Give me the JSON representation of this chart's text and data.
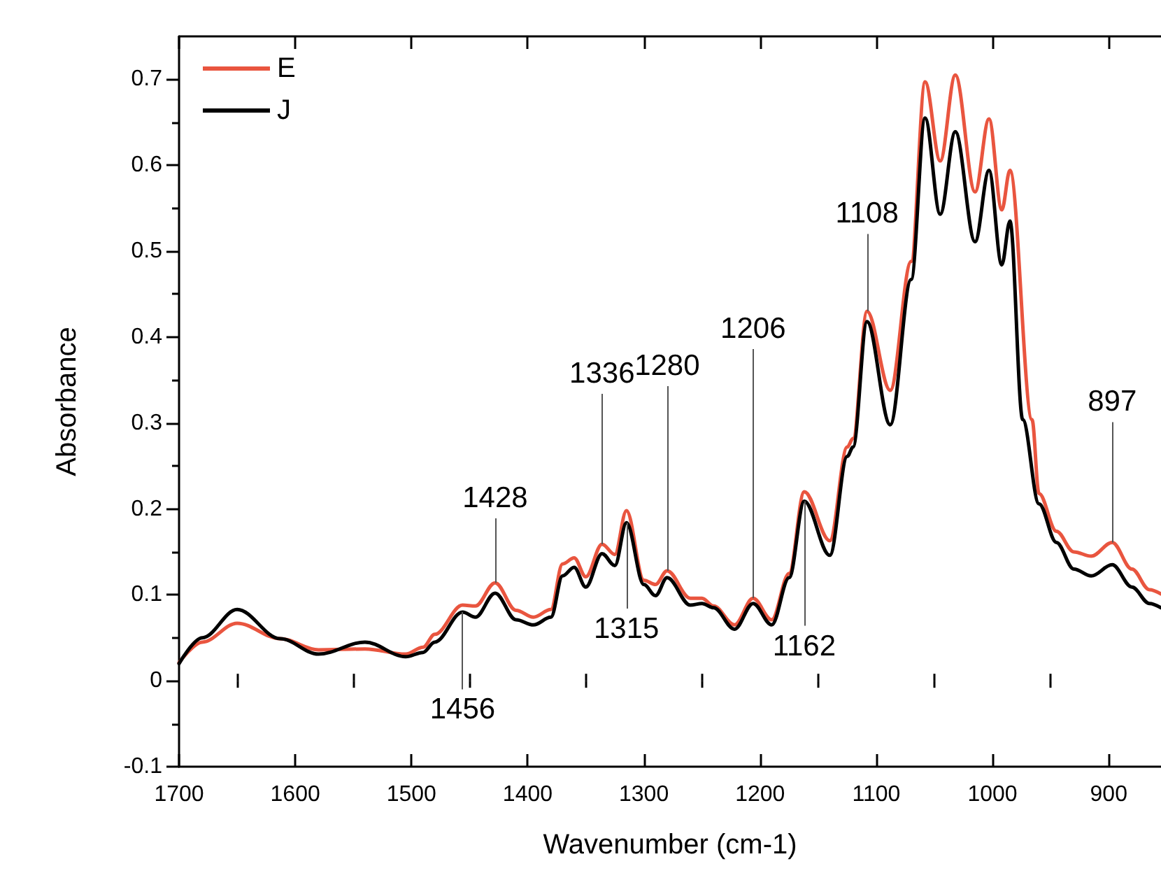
{
  "chart_data": {
    "type": "line",
    "xlabel": "Wavenumber (cm-1)",
    "ylabel": "Absorbance",
    "xlim": [
      1700,
      855
    ],
    "ylim": [
      -0.1,
      0.75
    ],
    "xticks": [
      1700,
      1600,
      1500,
      1400,
      1300,
      1200,
      1100,
      1000,
      900
    ],
    "yticks": [
      -0.1,
      0.0,
      0.1,
      0.2,
      0.3,
      0.4,
      0.5,
      0.6,
      0.7
    ],
    "legend": "top left",
    "grid": false,
    "marker": "none",
    "line_style": "solid",
    "series": [
      {
        "name": "E",
        "color": "#e9553f",
        "x": [
          1700,
          1680,
          1650,
          1613,
          1580,
          1540,
          1505,
          1490,
          1480,
          1456,
          1445,
          1428,
          1410,
          1395,
          1380,
          1370,
          1360,
          1350,
          1336,
          1325,
          1315,
          1300,
          1290,
          1280,
          1260,
          1250,
          1240,
          1222,
          1206,
          1190,
          1175,
          1162,
          1140,
          1125,
          1120,
          1108,
          1088,
          1070,
          1058,
          1045,
          1032,
          1015,
          1003,
          992,
          985,
          966,
          960,
          945,
          930,
          915,
          897,
          880,
          865,
          855
        ],
        "values": [
          0.021,
          0.045,
          0.067,
          0.049,
          0.036,
          0.037,
          0.031,
          0.039,
          0.054,
          0.088,
          0.087,
          0.114,
          0.082,
          0.074,
          0.083,
          0.136,
          0.143,
          0.121,
          0.159,
          0.147,
          0.198,
          0.117,
          0.112,
          0.128,
          0.096,
          0.096,
          0.087,
          0.065,
          0.096,
          0.071,
          0.125,
          0.22,
          0.163,
          0.272,
          0.282,
          0.43,
          0.338,
          0.488,
          0.697,
          0.605,
          0.705,
          0.569,
          0.654,
          0.548,
          0.594,
          0.304,
          0.218,
          0.174,
          0.15,
          0.145,
          0.161,
          0.13,
          0.106,
          0.101
        ]
      },
      {
        "name": "J",
        "color": "#000000",
        "x": [
          1700,
          1680,
          1650,
          1613,
          1580,
          1540,
          1505,
          1490,
          1480,
          1456,
          1445,
          1428,
          1410,
          1395,
          1380,
          1370,
          1360,
          1350,
          1336,
          1325,
          1315,
          1300,
          1290,
          1280,
          1260,
          1250,
          1240,
          1222,
          1206,
          1190,
          1175,
          1162,
          1140,
          1125,
          1120,
          1108,
          1088,
          1070,
          1058,
          1045,
          1032,
          1015,
          1003,
          992,
          985,
          974,
          960,
          945,
          930,
          915,
          897,
          880,
          865,
          855
        ],
        "values": [
          0.02,
          0.05,
          0.083,
          0.049,
          0.031,
          0.045,
          0.028,
          0.033,
          0.045,
          0.08,
          0.074,
          0.102,
          0.071,
          0.065,
          0.074,
          0.122,
          0.132,
          0.109,
          0.148,
          0.134,
          0.184,
          0.112,
          0.099,
          0.12,
          0.088,
          0.09,
          0.085,
          0.06,
          0.09,
          0.065,
          0.12,
          0.209,
          0.146,
          0.261,
          0.272,
          0.418,
          0.298,
          0.467,
          0.655,
          0.543,
          0.639,
          0.511,
          0.594,
          0.484,
          0.535,
          0.304,
          0.206,
          0.161,
          0.13,
          0.122,
          0.135,
          0.109,
          0.09,
          0.085
        ]
      }
    ],
    "annotations": [
      {
        "text": "1456",
        "x": 1456,
        "y": 0.08
      },
      {
        "text": "1428",
        "x": 1428,
        "y": 0.114
      },
      {
        "text": "1336",
        "x": 1336,
        "y": 0.159
      },
      {
        "text": "1280",
        "x": 1280,
        "y": 0.128
      },
      {
        "text": "1315",
        "x": 1315,
        "y": 0.184
      },
      {
        "text": "1206",
        "x": 1206,
        "y": 0.096
      },
      {
        "text": "1162",
        "x": 1162,
        "y": 0.209
      },
      {
        "text": "1108",
        "x": 1108,
        "y": 0.43
      },
      {
        "text": "897",
        "x": 897,
        "y": 0.161
      }
    ]
  }
}
